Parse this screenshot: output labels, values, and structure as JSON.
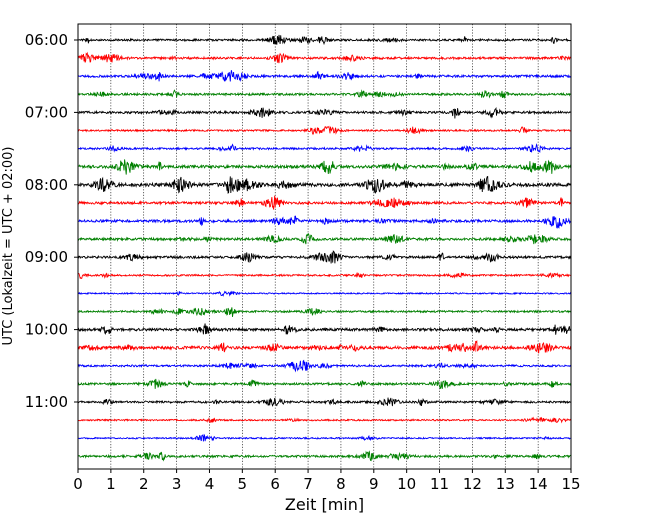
{
  "chart_data": {
    "type": "line",
    "title": "",
    "xlabel": "Zeit  [min]",
    "ylabel": "UTC (Lokalzeit = UTC + 02:00)",
    "xlim": [
      0,
      15
    ],
    "x_ticks": [
      "0",
      "1",
      "2",
      "3",
      "4",
      "5",
      "6",
      "7",
      "8",
      "9",
      "10",
      "11",
      "12",
      "13",
      "14",
      "15"
    ],
    "y_ticks": [
      "06:00",
      "07:00",
      "08:00",
      "09:00",
      "10:00",
      "11:00"
    ],
    "grid": "vertical dotted at each minute",
    "trace_minutes": 15,
    "trace_colors": [
      "#000000",
      "#ff0000",
      "#0000ff",
      "#008000"
    ],
    "series": [
      {
        "start": "06:00",
        "color": "#000000",
        "activity": 0.25
      },
      {
        "start": "06:15",
        "color": "#ff0000",
        "activity": 0.3
      },
      {
        "start": "06:30",
        "color": "#0000ff",
        "activity": 0.35
      },
      {
        "start": "06:45",
        "color": "#008000",
        "activity": 0.3
      },
      {
        "start": "07:00",
        "color": "#000000",
        "activity": 0.35
      },
      {
        "start": "07:15",
        "color": "#ff0000",
        "activity": 0.15
      },
      {
        "start": "07:30",
        "color": "#0000ff",
        "activity": 0.2
      },
      {
        "start": "07:45",
        "color": "#008000",
        "activity": 0.55
      },
      {
        "start": "08:00",
        "color": "#000000",
        "activity": 0.7
      },
      {
        "start": "08:15",
        "color": "#ff0000",
        "activity": 0.4
      },
      {
        "start": "08:30",
        "color": "#0000ff",
        "activity": 0.45
      },
      {
        "start": "08:45",
        "color": "#008000",
        "activity": 0.4
      },
      {
        "start": "09:00",
        "color": "#000000",
        "activity": 0.35
      },
      {
        "start": "09:15",
        "color": "#ff0000",
        "activity": 0.15
      },
      {
        "start": "09:30",
        "color": "#0000ff",
        "activity": 0.02
      },
      {
        "start": "09:45",
        "color": "#008000",
        "activity": 0.2
      },
      {
        "start": "10:00",
        "color": "#000000",
        "activity": 0.45
      },
      {
        "start": "10:15",
        "color": "#ff0000",
        "activity": 0.55
      },
      {
        "start": "10:30",
        "color": "#0000ff",
        "activity": 0.25
      },
      {
        "start": "10:45",
        "color": "#008000",
        "activity": 0.3
      },
      {
        "start": "11:00",
        "color": "#000000",
        "activity": 0.25
      },
      {
        "start": "11:15",
        "color": "#ff0000",
        "activity": 0.1
      },
      {
        "start": "11:30",
        "color": "#0000ff",
        "activity": 0.05
      },
      {
        "start": "11:45",
        "color": "#008000",
        "activity": 0.3
      }
    ]
  }
}
